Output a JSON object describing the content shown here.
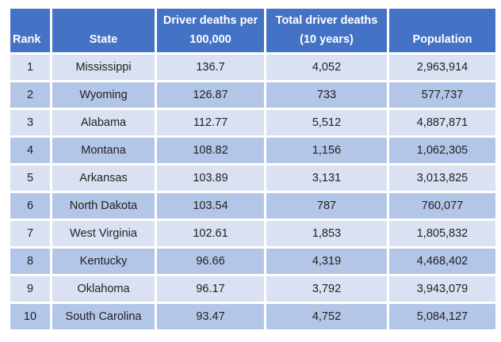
{
  "table": {
    "headers": {
      "rank": "Rank",
      "state": "State",
      "rate": "Driver deaths per 100,000",
      "total": "Total driver deaths (10 years)",
      "population": "Population"
    },
    "rows": [
      {
        "rank": "1",
        "state": "Mississippi",
        "rate": "136.7",
        "total": "4,052",
        "population": "2,963,914"
      },
      {
        "rank": "2",
        "state": "Wyoming",
        "rate": "126.87",
        "total": "733",
        "population": "577,737"
      },
      {
        "rank": "3",
        "state": "Alabama",
        "rate": "112.77",
        "total": "5,512",
        "population": "4,887,871"
      },
      {
        "rank": "4",
        "state": "Montana",
        "rate": "108.82",
        "total": "1,156",
        "population": "1,062,305"
      },
      {
        "rank": "5",
        "state": "Arkansas",
        "rate": "103.89",
        "total": "3,131",
        "population": "3,013,825"
      },
      {
        "rank": "6",
        "state": "North Dakota",
        "rate": "103.54",
        "total": "787",
        "population": "760,077"
      },
      {
        "rank": "7",
        "state": "West Virginia",
        "rate": "102.61",
        "total": "1,853",
        "population": "1,805,832"
      },
      {
        "rank": "8",
        "state": "Kentucky",
        "rate": "96.66",
        "total": "4,319",
        "population": "4,468,402"
      },
      {
        "rank": "9",
        "state": "Oklahoma",
        "rate": "96.17",
        "total": "3,792",
        "population": "3,943,079"
      },
      {
        "rank": "10",
        "state": "South Carolina",
        "rate": "93.47",
        "total": "4,752",
        "population": "5,084,127"
      }
    ]
  },
  "colors": {
    "header_bg": "#4472C4",
    "row_light": "#D9E1F2",
    "row_dark": "#B4C6E7"
  }
}
